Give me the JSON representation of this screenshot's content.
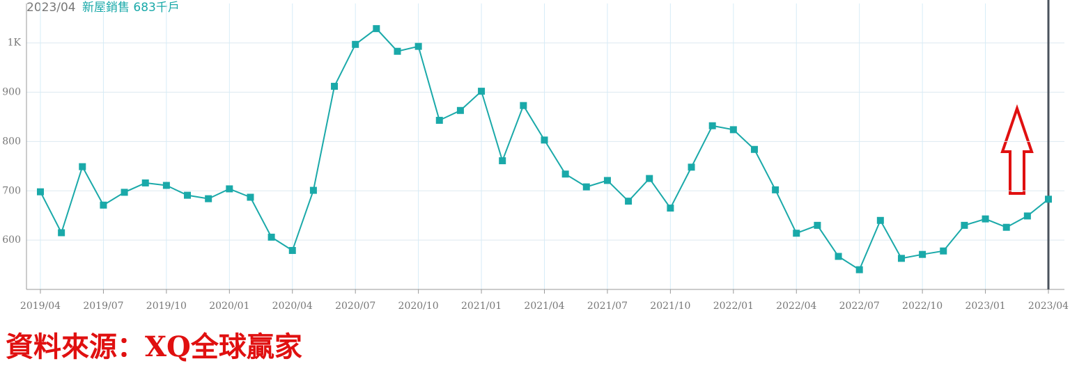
{
  "chart_data": {
    "type": "line",
    "header_date": "2023/04",
    "legend_text": "新屋銷售 683千戶",
    "source": "資料來源：XQ全球贏家",
    "categories": [
      "2019/04",
      null,
      null,
      "2019/07",
      null,
      null,
      "2019/10",
      null,
      null,
      "2020/01",
      null,
      null,
      "2020/04",
      null,
      null,
      "2020/07",
      null,
      null,
      "2020/10",
      null,
      null,
      "2021/01",
      null,
      null,
      "2021/04",
      null,
      null,
      "2021/07",
      null,
      null,
      "2021/10",
      null,
      null,
      "2022/01",
      null,
      null,
      "2022/04",
      null,
      null,
      "2022/07",
      null,
      null,
      "2022/10",
      null,
      null,
      "2023/01",
      null,
      null,
      "2023/04"
    ],
    "series": [
      {
        "name": "新屋銷售",
        "color": "#1aa9a9",
        "values": [
          698,
          615,
          749,
          671,
          697,
          716,
          711,
          691,
          684,
          704,
          687,
          606,
          579,
          701,
          912,
          997,
          1029,
          983,
          993,
          843,
          863,
          902,
          761,
          873,
          803,
          734,
          708,
          721,
          679,
          725,
          665,
          748,
          832,
          824,
          784,
          702,
          614,
          630,
          567,
          540,
          640,
          563,
          571,
          578,
          630,
          643,
          626,
          649,
          683
        ]
      }
    ],
    "ylim": [
      500,
      1080
    ],
    "yticks": [
      600,
      700,
      800,
      900,
      {
        "value": 1000,
        "label": "1K"
      }
    ],
    "grid": true
  }
}
